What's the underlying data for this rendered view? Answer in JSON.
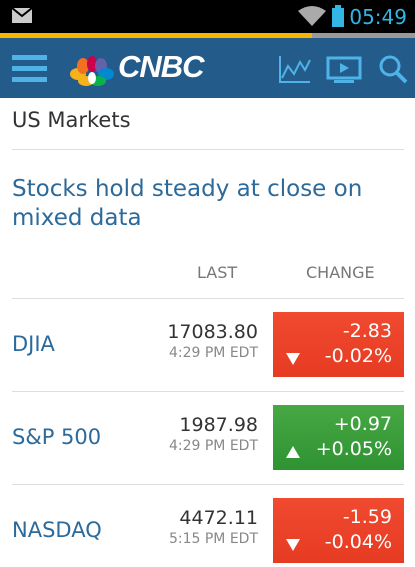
{
  "status_bar": {
    "time": "05:49"
  },
  "header": {
    "logo": "CNBC"
  },
  "section": {
    "title": "US Markets"
  },
  "headline": "Stocks hold steady at close on mixed data",
  "table": {
    "columns": [
      "LAST",
      "CHANGE"
    ],
    "rows": [
      {
        "name": "DJIA",
        "last": "17083.80",
        "time": "4:29 PM EDT",
        "change": "-2.83",
        "change_pct": "-0.02%"
      },
      {
        "name": "S&P 500",
        "last": "1987.98",
        "time": "4:29 PM EDT",
        "change": "+0.97",
        "change_pct": "+0.05%"
      },
      {
        "name": "NASDAQ",
        "last": "4472.11",
        "time": "5:15 PM EDT",
        "change": "-1.59",
        "change_pct": "-0.04%"
      }
    ]
  }
}
